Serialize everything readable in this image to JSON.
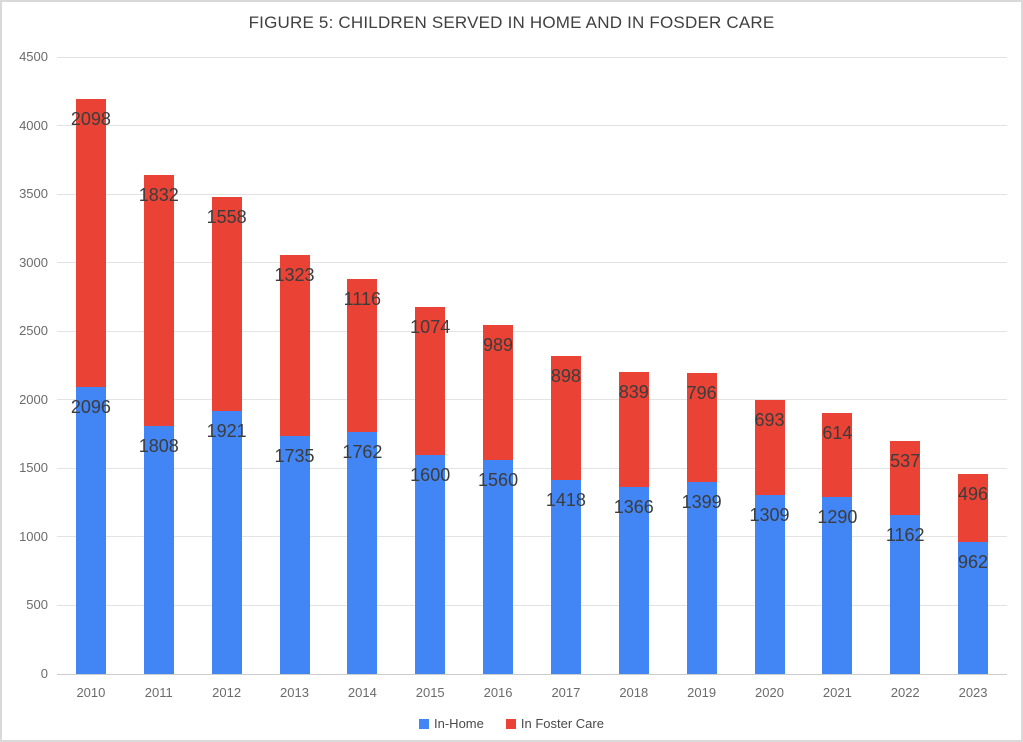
{
  "chart_data": {
    "type": "bar",
    "stacked": true,
    "title": "FIGURE 5: CHILDREN SERVED IN HOME AND IN FOSDER CARE",
    "categories": [
      "2010",
      "2011",
      "2012",
      "2013",
      "2014",
      "2015",
      "2016",
      "2017",
      "2018",
      "2019",
      "2020",
      "2021",
      "2022",
      "2023"
    ],
    "series": [
      {
        "name": "In-Home",
        "color": "#4285F4",
        "values": [
          2096,
          1808,
          1921,
          1735,
          1762,
          1600,
          1560,
          1418,
          1366,
          1399,
          1309,
          1290,
          1162,
          962
        ]
      },
      {
        "name": "In Foster Care",
        "color": "#EA4335",
        "values": [
          2098,
          1832,
          1558,
          1323,
          1116,
          1074,
          989,
          898,
          839,
          796,
          693,
          614,
          537,
          496
        ]
      }
    ],
    "totals": [
      4194,
      3640,
      3479,
      3058,
      2878,
      2674,
      2549,
      2316,
      2205,
      2195,
      2002,
      1904,
      1699,
      1458
    ],
    "xlabel": "",
    "ylabel": "",
    "ylim": [
      0,
      4500
    ],
    "ytick_step": 500,
    "yticks": [
      "0",
      "500",
      "1000",
      "1500",
      "2000",
      "2500",
      "3000",
      "3500",
      "4000",
      "4500"
    ],
    "grid": true,
    "data_labels": true,
    "legend_position": "bottom",
    "colors": {
      "grid": "#e3e3e3",
      "baseline": "#cccccc",
      "label_text": "#3c3c3c",
      "axis_text": "#6b6b6b"
    }
  }
}
